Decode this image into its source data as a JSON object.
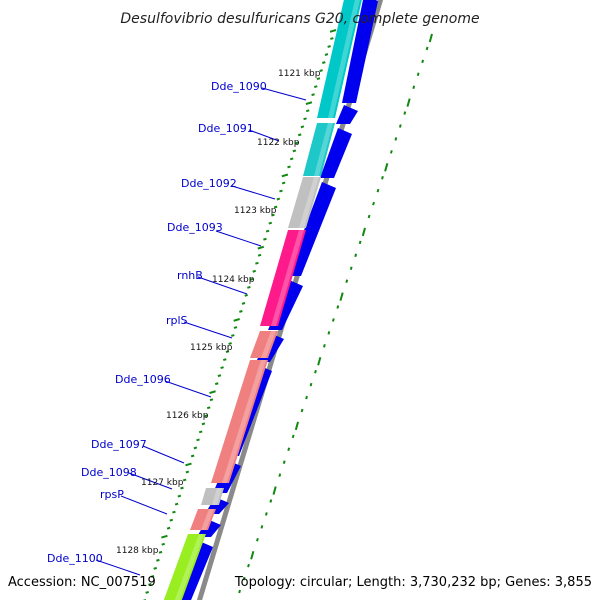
{
  "header": {
    "title": "Desulfovibrio desulfuricans G20, complete genome"
  },
  "footer": {
    "accession": "Accession: NC_007519",
    "topology": "Topology: circular; Length: 3,730,232 bp; Genes: 3,855"
  },
  "ruler": {
    "labels": [
      "1121 kbp",
      "1122 kbp",
      "1123 kbp",
      "1124 kbp",
      "1125 kbp",
      "1126 kbp",
      "1127 kbp",
      "1128 kbp"
    ]
  },
  "genes": [
    {
      "name": "",
      "color": "#00c8c8",
      "label_bound": false
    },
    {
      "name": "Dde_1090",
      "color": "#00c8c8"
    },
    {
      "name": "Dde_1091",
      "color": "#1ec8c8"
    },
    {
      "name": "Dde_1092",
      "color": "#c0c0c0"
    },
    {
      "name": "Dde_1093",
      "color": "#ff1a8c"
    },
    {
      "name": "rnhB",
      "color": "#ff1a8c"
    },
    {
      "name": "rplS",
      "color": "#f08080"
    },
    {
      "name": "Dde_1096",
      "color": "#f08080"
    },
    {
      "name": "Dde_1097",
      "color": "#f08080"
    },
    {
      "name": "Dde_1098",
      "color": "#c0c0c0"
    },
    {
      "name": "rpsP",
      "color": "#f08080"
    },
    {
      "name": "Dde_1100",
      "color": "#99ee22"
    }
  ],
  "colors": {
    "forward_strand": "#0000ee",
    "backbone": "#8a8a8a",
    "tick_marks": "#118811",
    "gene_label": "#0000cc",
    "leader_line": "#0000cc"
  }
}
